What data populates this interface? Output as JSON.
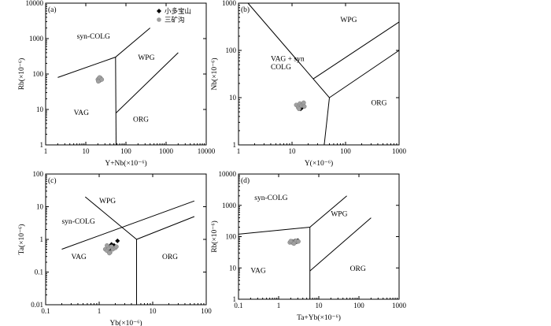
{
  "legend": {
    "items": [
      {
        "label": "小多宝山",
        "marker": "diamond",
        "color": "#000000"
      },
      {
        "label": "三矿沟",
        "marker": "circle",
        "color": "#a0a0a0"
      }
    ]
  },
  "chart_data": [
    {
      "type": "scatter",
      "tag": "(a)",
      "xlabel": "Y+Nb(×10⁻⁶)",
      "ylabel": "Rb(×10⁻⁶)",
      "xscale": "log",
      "yscale": "log",
      "xlim": [
        1,
        10000
      ],
      "ylim": [
        1,
        10000
      ],
      "xticks": [
        1,
        10,
        100,
        1000,
        10000
      ],
      "yticks": [
        1,
        10,
        100,
        1000,
        10000
      ],
      "boundaries": [
        [
          [
            2,
            80
          ],
          [
            55,
            300
          ],
          [
            400,
            2000
          ]
        ],
        [
          [
            55,
            300
          ],
          [
            57,
            1
          ]
        ],
        [
          [
            57,
            8
          ],
          [
            2000,
            400
          ]
        ]
      ],
      "regions": [
        {
          "label": "syn-COLG",
          "x": 6,
          "y": 1000
        },
        {
          "label": "WPG",
          "x": 200,
          "y": 250
        },
        {
          "label": "VAG",
          "x": 5,
          "y": 7
        },
        {
          "label": "ORG",
          "x": 150,
          "y": 4.5
        }
      ],
      "series": [
        {
          "name": "小多宝山",
          "marker": "diamond",
          "points": [
            [
              21,
              70
            ],
            [
              22,
              72
            ],
            [
              23,
              68
            ],
            [
              22.5,
              66
            ]
          ]
        },
        {
          "name": "三矿沟",
          "marker": "circle",
          "points": [
            [
              20,
              70
            ],
            [
              21,
              75
            ],
            [
              22,
              65
            ],
            [
              23,
              78
            ],
            [
              24,
              72
            ],
            [
              20.5,
              62
            ],
            [
              22,
              80
            ],
            [
              25,
              70
            ]
          ]
        }
      ]
    },
    {
      "type": "scatter",
      "tag": "(b)",
      "xlabel": "Y(×10⁻⁶)",
      "ylabel": "Nb(×10⁻⁶)",
      "xscale": "log",
      "yscale": "log",
      "xlim": [
        1,
        1000
      ],
      "ylim": [
        1,
        1000
      ],
      "xticks": [
        1,
        10,
        100,
        1000
      ],
      "yticks": [
        1,
        10,
        100,
        1000
      ],
      "boundaries": [
        [
          [
            1.5,
            1000
          ],
          [
            50,
            10
          ],
          [
            40,
            1
          ]
        ],
        [
          [
            50,
            10
          ],
          [
            1000,
            100
          ]
        ],
        [
          [
            25,
            25
          ],
          [
            1000,
            400
          ]
        ]
      ],
      "regions": [
        {
          "label": "WPG",
          "x": 80,
          "y": 400
        },
        {
          "label": "VAG + syn",
          "x": 4,
          "y": 60
        },
        {
          "label": "COLG",
          "x": 4,
          "y": 40
        },
        {
          "label": "ORG",
          "x": 300,
          "y": 7
        }
      ],
      "series": [
        {
          "name": "小多宝山",
          "marker": "diamond",
          "points": [
            [
              14,
              6
            ],
            [
              15,
              6.5
            ],
            [
              14.5,
              5.8
            ],
            [
              15.5,
              6.2
            ]
          ]
        },
        {
          "name": "三矿沟",
          "marker": "circle",
          "points": [
            [
              12,
              7
            ],
            [
              13,
              6.2
            ],
            [
              14,
              7.5
            ],
            [
              15,
              6.8
            ],
            [
              16,
              7.2
            ],
            [
              17,
              6.5
            ],
            [
              13.5,
              5.8
            ],
            [
              16.5,
              7.8
            ]
          ]
        }
      ]
    },
    {
      "type": "scatter",
      "tag": "(c)",
      "xlabel": "Yb(×10⁻⁶)",
      "ylabel": "Ta(×10⁻⁶)",
      "xscale": "log",
      "yscale": "log",
      "xlim": [
        0.1,
        100
      ],
      "ylim": [
        0.01,
        100
      ],
      "xticks": [
        0.1,
        1,
        10,
        100
      ],
      "yticks": [
        0.01,
        0.1,
        1,
        10,
        100
      ],
      "boundaries": [
        [
          [
            0.55,
            20
          ],
          [
            5,
            1
          ],
          [
            5,
            0.01
          ]
        ],
        [
          [
            5,
            1
          ],
          [
            60,
            5
          ]
        ],
        [
          [
            0.2,
            0.5
          ],
          [
            60,
            15
          ]
        ]
      ],
      "regions": [
        {
          "label": "WPG",
          "x": 1,
          "y": 13
        },
        {
          "label": "syn-COLG",
          "x": 0.2,
          "y": 3
        },
        {
          "label": "VAG",
          "x": 0.3,
          "y": 0.25
        },
        {
          "label": "ORG",
          "x": 15,
          "y": 0.25
        }
      ],
      "series": [
        {
          "name": "小多宝山",
          "marker": "diamond",
          "points": [
            [
              1.5,
              0.6
            ],
            [
              1.7,
              0.7
            ],
            [
              2.2,
              0.9
            ],
            [
              1.6,
              0.5
            ],
            [
              1.9,
              0.65
            ]
          ]
        },
        {
          "name": "三矿沟",
          "marker": "circle",
          "points": [
            [
              1.3,
              0.5
            ],
            [
              1.4,
              0.45
            ],
            [
              1.5,
              0.55
            ],
            [
              1.6,
              0.4
            ],
            [
              1.7,
              0.6
            ],
            [
              1.8,
              0.5
            ],
            [
              2,
              0.55
            ],
            [
              2.1,
              0.6
            ],
            [
              1.4,
              0.65
            ],
            [
              1.55,
              0.38
            ]
          ]
        }
      ]
    },
    {
      "type": "scatter",
      "tag": "(d)",
      "xlabel": "Ta+Yb(×10⁻⁶)",
      "ylabel": "Rb(×10⁻⁶)",
      "xscale": "log",
      "yscale": "log",
      "xlim": [
        0.1,
        1000
      ],
      "ylim": [
        1,
        10000
      ],
      "xticks": [
        0.1,
        1,
        10,
        100,
        1000
      ],
      "yticks": [
        1,
        10,
        100,
        1000,
        10000
      ],
      "boundaries": [
        [
          [
            0.1,
            120
          ],
          [
            6,
            200
          ],
          [
            50,
            2000
          ]
        ],
        [
          [
            6,
            200
          ],
          [
            6,
            1
          ]
        ],
        [
          [
            6,
            8
          ],
          [
            200,
            400
          ]
        ]
      ],
      "regions": [
        {
          "label": "syn-COLG",
          "x": 0.25,
          "y": 1500
        },
        {
          "label": "WPG",
          "x": 20,
          "y": 450
        },
        {
          "label": "VAG",
          "x": 0.2,
          "y": 7
        },
        {
          "label": "ORG",
          "x": 60,
          "y": 8
        }
      ],
      "series": [
        {
          "name": "小多宝山",
          "marker": "diamond",
          "points": [
            [
              2.2,
              70
            ],
            [
              2.5,
              72
            ],
            [
              3,
              75
            ],
            [
              2.8,
              68
            ]
          ]
        },
        {
          "name": "三矿沟",
          "marker": "circle",
          "points": [
            [
              1.9,
              65
            ],
            [
              2.1,
              70
            ],
            [
              2.3,
              62
            ],
            [
              2.6,
              68
            ],
            [
              2.7,
              74
            ],
            [
              2.4,
              60
            ],
            [
              3.1,
              70
            ],
            [
              2.0,
              72
            ]
          ]
        }
      ]
    }
  ]
}
